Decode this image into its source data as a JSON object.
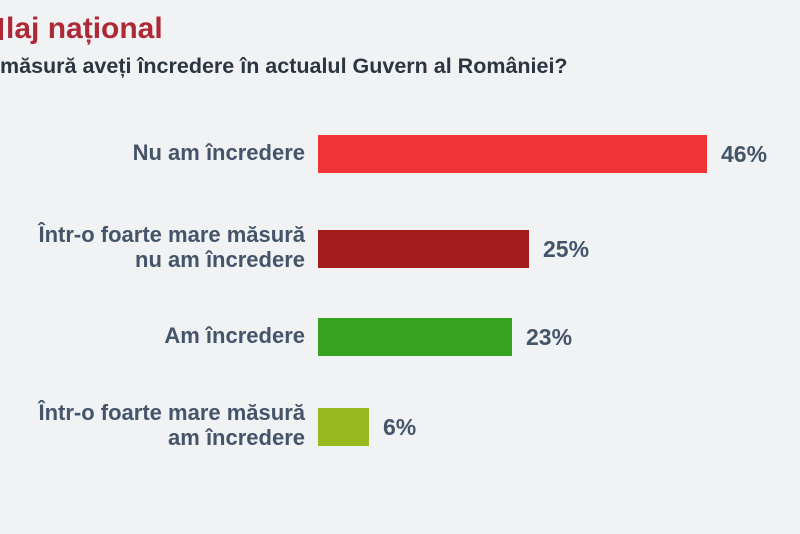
{
  "page": {
    "background_color": "#f1f2f4"
  },
  "header": {
    "title_visible_text": "laj național",
    "title_color": "#ae2936",
    "question_visible_text": "măsură aveți încredere în actualul Guvern al României?",
    "question_color": "#2c3540"
  },
  "chart_data": {
    "type": "bar",
    "orientation": "horizontal",
    "title": "laj național",
    "subtitle": "măsură aveți încredere în actualul Guvern al României?",
    "categories": [
      "Nu am încredere",
      "Într-o foarte mare măsură nu am încredere",
      "Am încredere",
      "Într-o foarte mare măsură am încredere"
    ],
    "label_lines": [
      [
        "Nu am încredere"
      ],
      [
        "Într-o foarte mare măsură",
        "nu am încredere"
      ],
      [
        "Am încredere"
      ],
      [
        "Într-o foarte mare măsură",
        "am încredere"
      ]
    ],
    "values": [
      46,
      25,
      23,
      6
    ],
    "value_labels": [
      "46%",
      "25%",
      "23%",
      "6%"
    ],
    "bar_colors": [
      "#ee3436",
      "#a31d1d",
      "#37a122",
      "#98ba1f"
    ],
    "label_color": "#44546a",
    "value_color": "#44546a",
    "xlim": [
      0,
      50
    ],
    "grid": false,
    "legend": false,
    "value_label_position": "end-of-bar"
  }
}
